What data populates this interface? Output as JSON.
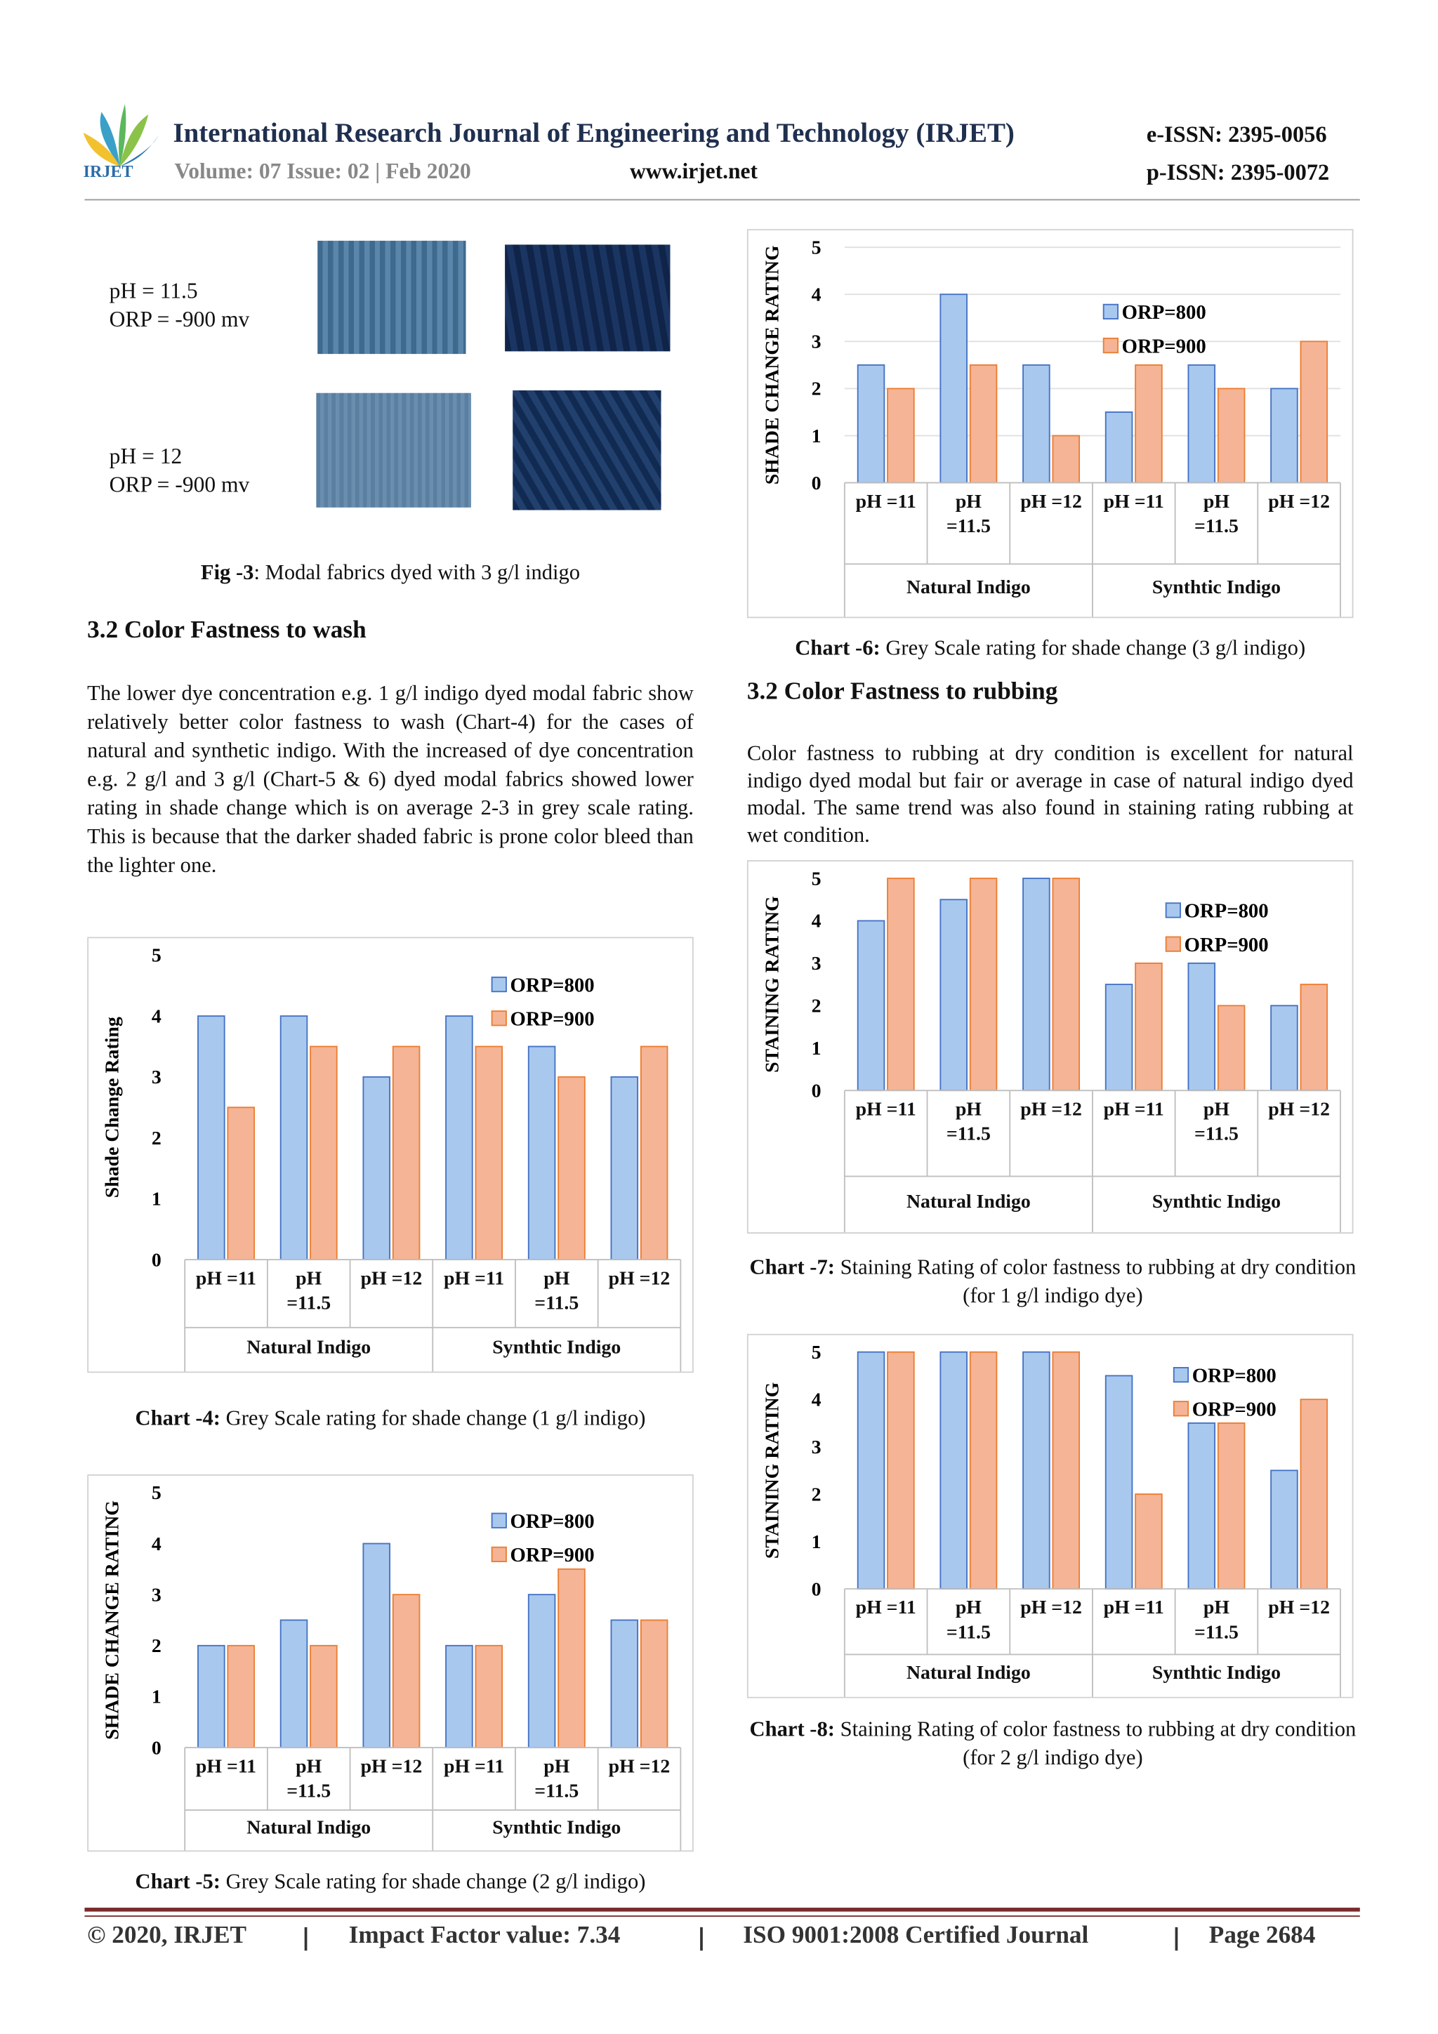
{
  "header": {
    "logo_text": "IRJET",
    "title": "International Research Journal of Engineering and Technology (IRJET)",
    "eissn": "e-ISSN: 2395-0056",
    "volume": "Volume: 07 Issue: 02 | Feb 2020",
    "url": "www.irjet.net",
    "pissn": "p-ISSN: 2395-0072"
  },
  "figure": {
    "rows": [
      {
        "ph": "pH = 11.5",
        "orp": "ORP = -900 mv"
      },
      {
        "ph": "pH = 12",
        "orp": "ORP = -900 mv"
      }
    ],
    "caption_label": "Fig -3",
    "caption_text": ": Modal fabrics dyed with 3 g/l indigo"
  },
  "sections": [
    {
      "heading": "3.2 Color Fastness to wash",
      "text": "The lower dye concentration e.g. 1 g/l indigo dyed modal fabric show relatively better color fastness to wash (Chart-4) for the cases of natural and synthetic indigo. With the increased of dye concentration e.g. 2 g/l and 3 g/l (Chart-5 & 6) dyed modal fabrics showed lower rating in shade change which is on average 2-3 in grey scale rating. This is because that the darker shaded fabric is prone color bleed than the lighter one."
    },
    {
      "heading": "3.2 Color Fastness to rubbing",
      "text": "Color fastness to rubbing at dry condition is excellent for natural indigo dyed modal but fair or average in case of natural indigo dyed modal. The same trend was also found in staining rating rubbing at wet condition."
    }
  ],
  "chart_data": [
    {
      "type": "bar",
      "caption_label": "Chart -4:",
      "caption_text": " Grey Scale rating for shade change (1 g/l indigo)",
      "ylabel": "Shade Change Rating",
      "categories": [
        "pH =11",
        "pH =11.5",
        "pH =12",
        "pH =11",
        "pH =11.5",
        "pH =12"
      ],
      "groups": [
        "Natural  Indigo",
        "Synthtic Indigo"
      ],
      "series": [
        {
          "name": "ORP=800",
          "color": "#a9c8ee",
          "edgecolor": "#4472c4",
          "values": [
            4,
            4,
            3,
            4,
            3.5,
            3
          ]
        },
        {
          "name": "ORP=900",
          "color": "#f5b495",
          "edgecolor": "#ed7d31",
          "values": [
            2.5,
            3.5,
            3.5,
            3.5,
            3,
            3.5
          ]
        }
      ],
      "ylim": [
        0,
        5
      ],
      "yticks": [
        0,
        1,
        2,
        3,
        4,
        5
      ],
      "grid": false
    },
    {
      "type": "bar",
      "caption_label": "Chart -5:",
      "caption_text": " Grey Scale rating for shade change (2 g/l indigo)",
      "ylabel": "SHADE CHANGE RATING",
      "categories": [
        "pH =11",
        "pH =11.5",
        "pH =12",
        "pH =11",
        "pH =11.5",
        "pH =12"
      ],
      "groups": [
        "Natural  Indigo",
        "Synthtic Indigo"
      ],
      "series": [
        {
          "name": "ORP=800",
          "color": "#a9c8ee",
          "edgecolor": "#4472c4",
          "values": [
            2,
            2.5,
            4,
            2,
            3,
            2.5
          ]
        },
        {
          "name": "ORP=900",
          "color": "#f5b495",
          "edgecolor": "#ed7d31",
          "values": [
            2,
            2,
            3,
            2,
            3.5,
            2.5
          ]
        }
      ],
      "ylim": [
        0,
        5
      ],
      "yticks": [
        0,
        1,
        2,
        3,
        4,
        5
      ],
      "grid": false
    },
    {
      "type": "bar",
      "caption_label": "Chart -6:",
      "caption_text": " Grey Scale rating for shade change (3 g/l indigo)",
      "ylabel": "SHADE CHANGE RATING",
      "categories": [
        "pH =11",
        "pH =11.5",
        "pH =12",
        "pH =11",
        "pH =11.5",
        "pH =12"
      ],
      "groups": [
        "Natural  Indigo",
        "Synthtic Indigo"
      ],
      "series": [
        {
          "name": "ORP=800",
          "color": "#a9c8ee",
          "edgecolor": "#4472c4",
          "values": [
            2.5,
            4,
            2.5,
            1.5,
            2.5,
            2
          ]
        },
        {
          "name": "ORP=900",
          "color": "#f5b495",
          "edgecolor": "#ed7d31",
          "values": [
            2,
            2.5,
            1,
            2.5,
            2,
            3
          ]
        }
      ],
      "ylim": [
        0,
        5
      ],
      "yticks": [
        0,
        1,
        2,
        3,
        4,
        5
      ],
      "grid": true
    },
    {
      "type": "bar",
      "caption_label": "Chart -7:",
      "caption_text": " Staining Rating of color fastness to rubbing at dry condition (for 1 g/l indigo dye)",
      "ylabel": "STAINING RATING",
      "categories": [
        "pH =11",
        "pH =11.5",
        "pH =12",
        "pH =11",
        "pH =11.5",
        "pH =12"
      ],
      "groups": [
        "Natural  Indigo",
        "Synthtic Indigo"
      ],
      "series": [
        {
          "name": "ORP=800",
          "color": "#a9c8ee",
          "edgecolor": "#4472c4",
          "values": [
            4,
            4.5,
            5,
            2.5,
            3,
            2
          ]
        },
        {
          "name": "ORP=900",
          "color": "#f5b495",
          "edgecolor": "#ed7d31",
          "values": [
            5,
            5,
            5,
            3,
            2,
            2.5
          ]
        }
      ],
      "ylim": [
        0,
        5
      ],
      "yticks": [
        0,
        1,
        2,
        3,
        4,
        5
      ],
      "grid": false
    },
    {
      "type": "bar",
      "caption_label": "Chart -8:",
      "caption_text": " Staining Rating of color fastness to rubbing at dry condition (for 2 g/l indigo dye)",
      "ylabel": "STAINING RATING",
      "categories": [
        "pH =11",
        "pH =11.5",
        "pH =12",
        "pH =11",
        "pH =11.5",
        "pH =12"
      ],
      "groups": [
        "Natural  Indigo",
        "Synthtic Indigo"
      ],
      "series": [
        {
          "name": "ORP=800",
          "color": "#a9c8ee",
          "edgecolor": "#4472c4",
          "values": [
            5,
            5,
            5,
            4.5,
            3.5,
            2.5
          ]
        },
        {
          "name": "ORP=900",
          "color": "#f5b495",
          "edgecolor": "#ed7d31",
          "values": [
            5,
            5,
            5,
            2,
            3.5,
            4
          ]
        }
      ],
      "ylim": [
        0,
        5
      ],
      "yticks": [
        0,
        1,
        2,
        3,
        4,
        5
      ],
      "grid": false
    }
  ],
  "footer": {
    "copyright": "© 2020, IRJET",
    "impact": "Impact Factor value: 7.34",
    "iso": "ISO 9001:2008 Certified Journal",
    "page": "Page 2684"
  }
}
